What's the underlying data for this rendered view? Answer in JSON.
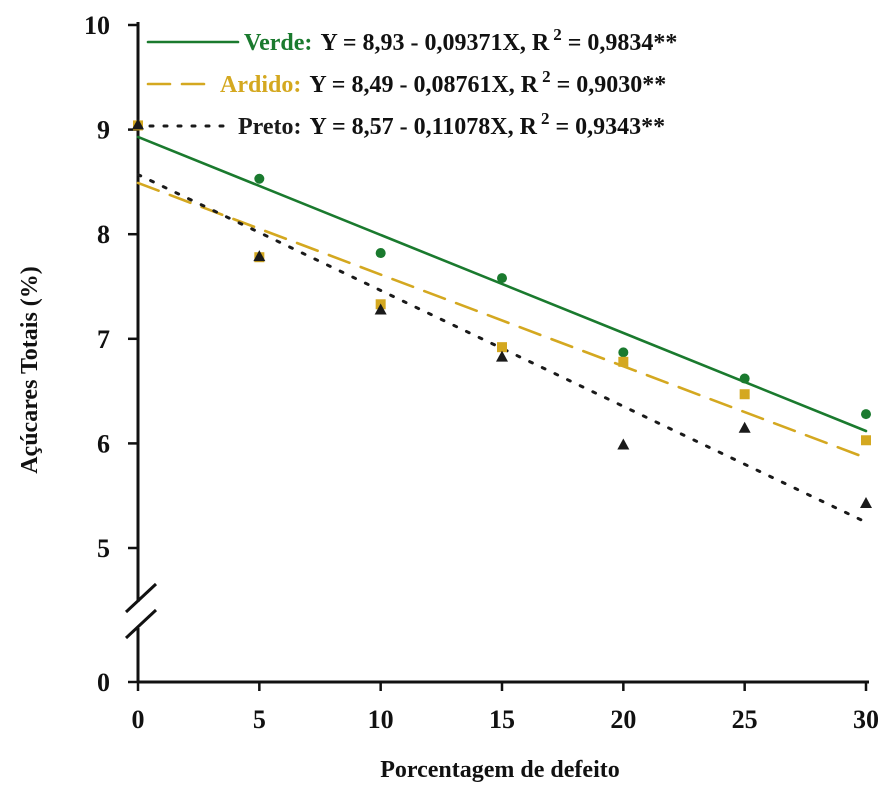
{
  "chart_data": {
    "type": "scatter",
    "xlabel": "Porcentagem de defeito",
    "ylabel": "Açúcares Totais (%)",
    "x_ticks": [
      "0",
      "5",
      "10",
      "15",
      "20",
      "25",
      "30"
    ],
    "y_ticks": [
      "0",
      "5",
      "6",
      "7",
      "8",
      "9",
      "10"
    ],
    "xlim": [
      0,
      30
    ],
    "ylim": [
      0,
      10
    ],
    "y_axis_break": [
      0,
      5
    ],
    "x": [
      0,
      5,
      10,
      15,
      20,
      25,
      30
    ],
    "series": [
      {
        "name": "Verde",
        "equation": "Y = 8,93 - 0,09371X, R",
        "r2": "= 0,9834**",
        "marker": "circle",
        "line_style": "solid",
        "color": "#1a7a2e",
        "values": [
          9.04,
          8.53,
          7.82,
          7.58,
          6.87,
          6.62,
          6.28
        ],
        "fit": {
          "intercept": 8.93,
          "slope": -0.09371
        }
      },
      {
        "name": "Ardido",
        "equation": "Y = 8,49 - 0,08761X, R",
        "r2": "= 0,9030**",
        "marker": "square",
        "line_style": "dashed",
        "color": "#d4a820",
        "values": [
          9.04,
          7.78,
          7.33,
          6.92,
          6.78,
          6.47,
          6.03
        ],
        "fit": {
          "intercept": 8.49,
          "slope": -0.08761
        }
      },
      {
        "name": "Preto",
        "equation": "Y = 8,57 - 0,11078X, R",
        "r2": "= 0,9343**",
        "marker": "triangle",
        "line_style": "dotted",
        "color": "#1a1a1a",
        "values": [
          9.05,
          7.79,
          7.28,
          6.83,
          5.99,
          6.15,
          5.43
        ],
        "fit": {
          "intercept": 8.57,
          "slope": -0.11078
        }
      }
    ],
    "legend_position": "top",
    "grid": false
  }
}
